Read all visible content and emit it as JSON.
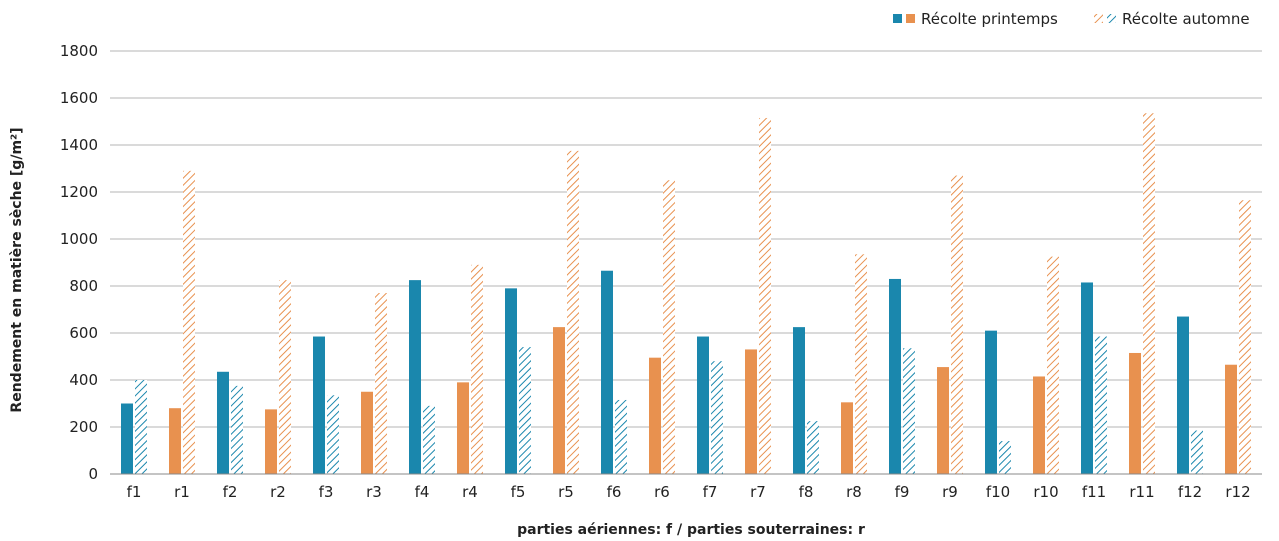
{
  "chart_data": {
    "type": "bar",
    "xlabel": "parties aériennes: f / parties souterraines: r",
    "ylabel": "Rendement en matière sèche [g/m²]",
    "ylim": [
      0,
      1800
    ],
    "yticks": [
      0,
      200,
      400,
      600,
      800,
      1000,
      1200,
      1400,
      1600,
      1800
    ],
    "grid": true,
    "legend_position": "top-right",
    "categories": [
      "f1",
      "r1",
      "f2",
      "r2",
      "f3",
      "r3",
      "f4",
      "r4",
      "f5",
      "r5",
      "f6",
      "r6",
      "f7",
      "r7",
      "f8",
      "r8",
      "f9",
      "r9",
      "f10",
      "r10",
      "f11",
      "r11",
      "f12",
      "r12"
    ],
    "series": [
      {
        "name": "Récolte printemps",
        "pattern": "solid",
        "values": [
          300,
          280,
          435,
          275,
          585,
          350,
          825,
          390,
          790,
          625,
          865,
          495,
          585,
          530,
          625,
          305,
          830,
          455,
          610,
          415,
          815,
          515,
          670,
          465
        ]
      },
      {
        "name": "Récolte automne",
        "pattern": "hatched",
        "values": [
          400,
          1290,
          375,
          825,
          335,
          770,
          290,
          890,
          540,
          1375,
          315,
          1250,
          480,
          1515,
          225,
          935,
          535,
          1270,
          140,
          925,
          585,
          1535,
          185,
          1165
        ]
      }
    ],
    "category_colors": {
      "f": "#1a87ad",
      "r": "#e8914f"
    },
    "colors": {
      "grid": "#b4b4b4",
      "axis": "#888888",
      "text": "#222222"
    }
  }
}
